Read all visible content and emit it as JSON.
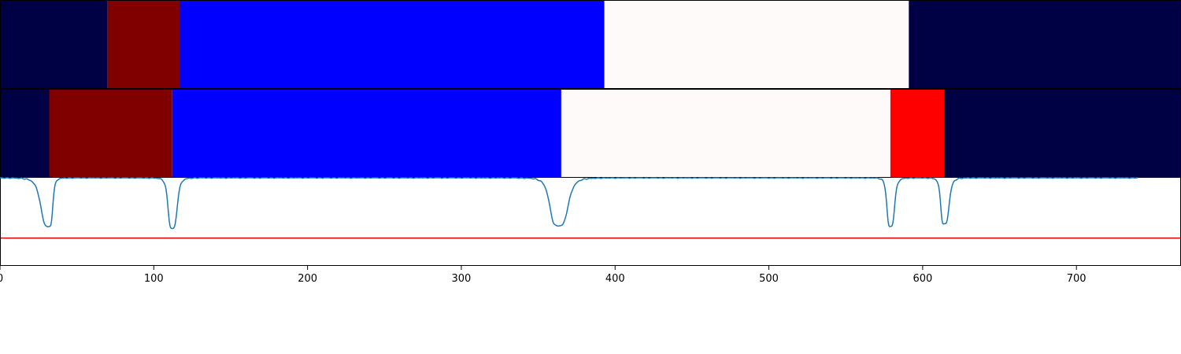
{
  "chart_data": {
    "type": "segmentation-timeline",
    "xlim": [
      0,
      768
    ],
    "x_ticks": [
      "0",
      "100",
      "200",
      "300",
      "400",
      "500",
      "600",
      "700"
    ],
    "x_tick_values": [
      0,
      100,
      200,
      300,
      400,
      500,
      600,
      700
    ],
    "grid": false,
    "legend": "none",
    "rows": [
      {
        "segments": [
          {
            "start": 0,
            "end": 70,
            "color": "#000044"
          },
          {
            "start": 70,
            "end": 117,
            "color": "#800000"
          },
          {
            "start": 117,
            "end": 393,
            "color": "#0000ff"
          },
          {
            "start": 393,
            "end": 591,
            "color": "#fffafa"
          },
          {
            "start": 591,
            "end": 768,
            "color": "#000044"
          }
        ]
      },
      {
        "segments": [
          {
            "start": 0,
            "end": 32,
            "color": "#000044"
          },
          {
            "start": 32,
            "end": 112,
            "color": "#800000"
          },
          {
            "start": 112,
            "end": 365,
            "color": "#0000ff"
          },
          {
            "start": 365,
            "end": 579,
            "color": "#fffafa"
          },
          {
            "start": 579,
            "end": 614,
            "color": "#ff0000"
          },
          {
            "start": 614,
            "end": 768,
            "color": "#000044"
          }
        ]
      }
    ],
    "confidence": {
      "ylim": [
        0,
        1
      ],
      "threshold": 0.31,
      "threshold_color": "#dd0000",
      "line_color": "#1f77b4",
      "dips": [
        {
          "center": 32,
          "depth": 0.44,
          "width_left": 6,
          "width_right": 2.5
        },
        {
          "center": 112,
          "depth": 0.42,
          "width_left": 3,
          "width_right": 3.5
        },
        {
          "center": 363,
          "depth": 0.45,
          "width_left": 6,
          "width_right": 7
        },
        {
          "center": 579,
          "depth": 0.44,
          "width_left": 2.5,
          "width_right": 3
        },
        {
          "center": 614,
          "depth": 0.47,
          "width_left": 2.5,
          "width_right": 3.5
        }
      ]
    }
  }
}
